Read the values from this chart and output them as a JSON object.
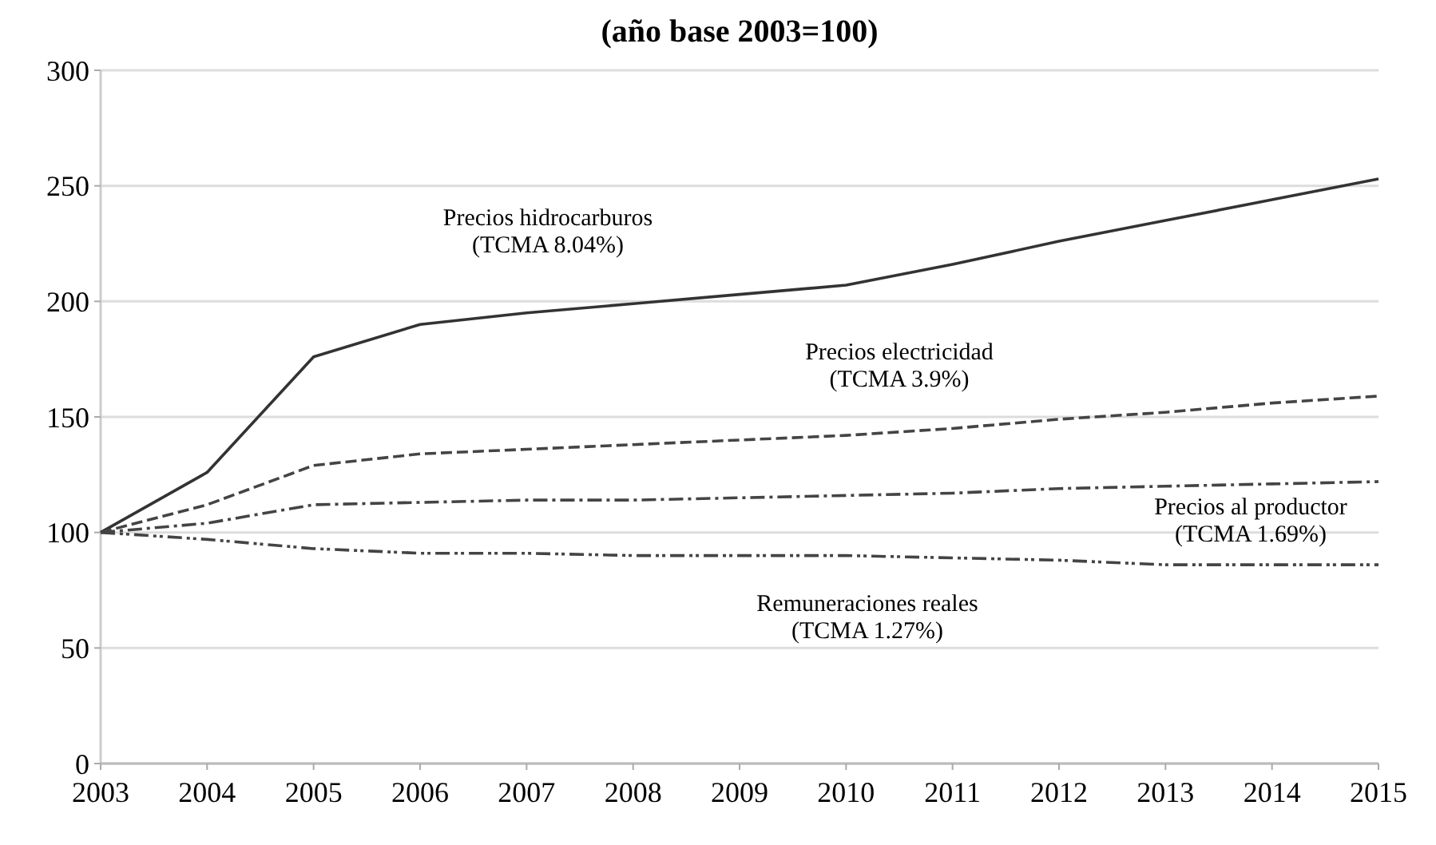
{
  "chart_data": {
    "type": "line",
    "title": "(año base 2003=100)",
    "x": [
      2003,
      2004,
      2005,
      2006,
      2007,
      2008,
      2009,
      2010,
      2011,
      2012,
      2013,
      2014,
      2015
    ],
    "xlim": [
      2003,
      2015
    ],
    "xticks": [
      2003,
      2004,
      2005,
      2006,
      2007,
      2008,
      2009,
      2010,
      2011,
      2012,
      2013,
      2014,
      2015
    ],
    "ylim": [
      0,
      300
    ],
    "yticks": [
      0,
      50,
      100,
      150,
      200,
      250,
      300
    ],
    "grid": "y",
    "marker": "none",
    "series": [
      {
        "name": "Precios hidrocarburos\n(TCMA 8.04%)",
        "color": "#333333",
        "line_style": "solid",
        "values": [
          100,
          126,
          176,
          190,
          195,
          199,
          203,
          207,
          216,
          226,
          235,
          244,
          253
        ]
      },
      {
        "name": "Precios electricidad\n(TCMA 3.9%)",
        "color": "#444444",
        "line_style": "dashed",
        "values": [
          100,
          112,
          129,
          134,
          136,
          138,
          140,
          142,
          145,
          149,
          152,
          156,
          159
        ]
      },
      {
        "name": "Precios al productor\n(TCMA 1.69%)",
        "color": "#444444",
        "line_style": "dashdot",
        "values": [
          100,
          104,
          112,
          113,
          114,
          114,
          115,
          116,
          117,
          119,
          120,
          121,
          122
        ]
      },
      {
        "name": "Remuneraciones reales\n(TCMA 1.27%)",
        "color": "#444444",
        "line_style": "dashdotdot",
        "values": [
          100,
          97,
          93,
          91,
          91,
          90,
          90,
          90,
          89,
          88,
          86,
          86,
          86
        ]
      }
    ]
  }
}
